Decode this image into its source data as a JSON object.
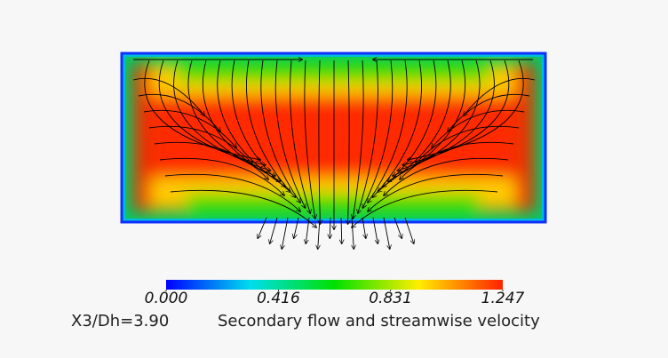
{
  "chart_data": {
    "type": "contour",
    "title": "Secondary flow and streamwise velocity",
    "annotation": "X3/Dh=3.90",
    "colorbar": {
      "lim": [
        0,
        1.247
      ],
      "ticks": [
        {
          "value": 0,
          "label": "0.000"
        },
        {
          "value": 0.416,
          "label": "0.416"
        },
        {
          "value": 0.831,
          "label": "0.831"
        },
        {
          "value": 1.247,
          "label": "1.247"
        }
      ],
      "colors": [
        "#0000ff",
        "#00ddee",
        "#00e000",
        "#ffee00",
        "#ff2000"
      ]
    }
  }
}
